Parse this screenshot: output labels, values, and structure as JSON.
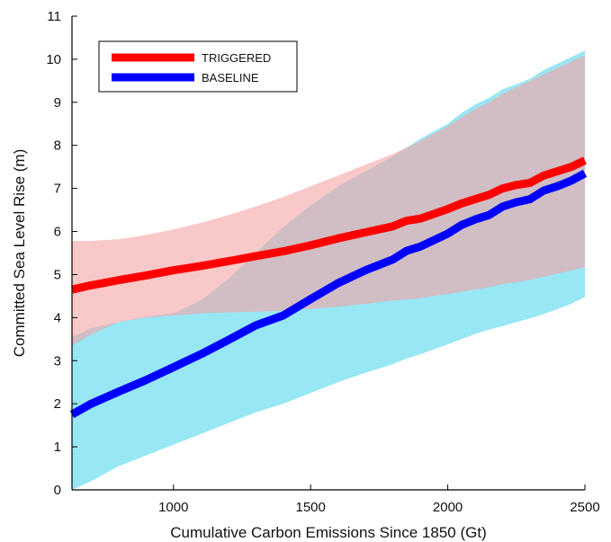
{
  "chart_data": {
    "type": "line",
    "title": "",
    "xlabel": "Cumulative Carbon Emissions Since 1850 (Gt)",
    "ylabel": "Committed Sea Level Rise (m)",
    "xlim": [
      630,
      2500
    ],
    "ylim": [
      0,
      11
    ],
    "xticks": [
      1000,
      1500,
      2000,
      2500
    ],
    "yticks": [
      0,
      1,
      2,
      3,
      4,
      5,
      6,
      7,
      8,
      9,
      10,
      11
    ],
    "grid": false,
    "legend_position": "top-left",
    "series": [
      {
        "name": "TRIGGERED",
        "color": "#ff0000",
        "band_color": "#f5a3a3",
        "x": [
          630,
          700,
          800,
          900,
          1000,
          1100,
          1200,
          1300,
          1400,
          1500,
          1600,
          1700,
          1800,
          1850,
          1900,
          2000,
          2050,
          2100,
          2150,
          2200,
          2250,
          2300,
          2350,
          2400,
          2450,
          2500
        ],
        "values": [
          4.65,
          4.75,
          4.87,
          4.98,
          5.1,
          5.2,
          5.31,
          5.43,
          5.54,
          5.68,
          5.84,
          5.98,
          6.12,
          6.25,
          6.3,
          6.52,
          6.65,
          6.75,
          6.85,
          7.0,
          7.08,
          7.13,
          7.3,
          7.4,
          7.5,
          7.65
        ],
        "upper": [
          5.78,
          5.78,
          5.82,
          5.92,
          6.05,
          6.2,
          6.38,
          6.58,
          6.8,
          7.05,
          7.3,
          7.55,
          7.8,
          7.95,
          8.1,
          8.45,
          8.65,
          8.85,
          9.0,
          9.2,
          9.35,
          9.5,
          9.65,
          9.8,
          9.95,
          10.1
        ],
        "lower": [
          3.35,
          3.6,
          3.9,
          4.0,
          4.05,
          4.1,
          4.12,
          4.14,
          4.16,
          4.2,
          4.25,
          4.32,
          4.4,
          4.42,
          4.45,
          4.55,
          4.6,
          4.65,
          4.7,
          4.78,
          4.82,
          4.88,
          4.95,
          5.02,
          5.1,
          5.17
        ]
      },
      {
        "name": "BASELINE",
        "color": "#0000ff",
        "band_color": "#86e3f3",
        "x": [
          630,
          700,
          800,
          900,
          1000,
          1100,
          1200,
          1300,
          1400,
          1500,
          1600,
          1700,
          1800,
          1850,
          1900,
          2000,
          2050,
          2100,
          2150,
          2200,
          2250,
          2300,
          2350,
          2400,
          2450,
          2500
        ],
        "values": [
          1.75,
          2.0,
          2.28,
          2.55,
          2.85,
          3.15,
          3.48,
          3.82,
          4.05,
          4.43,
          4.8,
          5.1,
          5.35,
          5.55,
          5.65,
          5.95,
          6.15,
          6.28,
          6.38,
          6.58,
          6.68,
          6.75,
          6.95,
          7.05,
          7.18,
          7.35
        ],
        "upper": [
          3.55,
          3.75,
          3.9,
          4.02,
          4.1,
          4.4,
          4.9,
          5.5,
          6.1,
          6.6,
          7.05,
          7.4,
          7.75,
          7.95,
          8.15,
          8.5,
          8.75,
          8.95,
          9.1,
          9.3,
          9.42,
          9.55,
          9.75,
          9.9,
          10.05,
          10.2
        ],
        "lower": [
          0.0,
          0.2,
          0.55,
          0.8,
          1.05,
          1.3,
          1.55,
          1.8,
          2.0,
          2.25,
          2.5,
          2.72,
          2.92,
          3.05,
          3.15,
          3.38,
          3.5,
          3.62,
          3.72,
          3.8,
          3.9,
          3.98,
          4.08,
          4.2,
          4.32,
          4.48
        ]
      }
    ]
  }
}
